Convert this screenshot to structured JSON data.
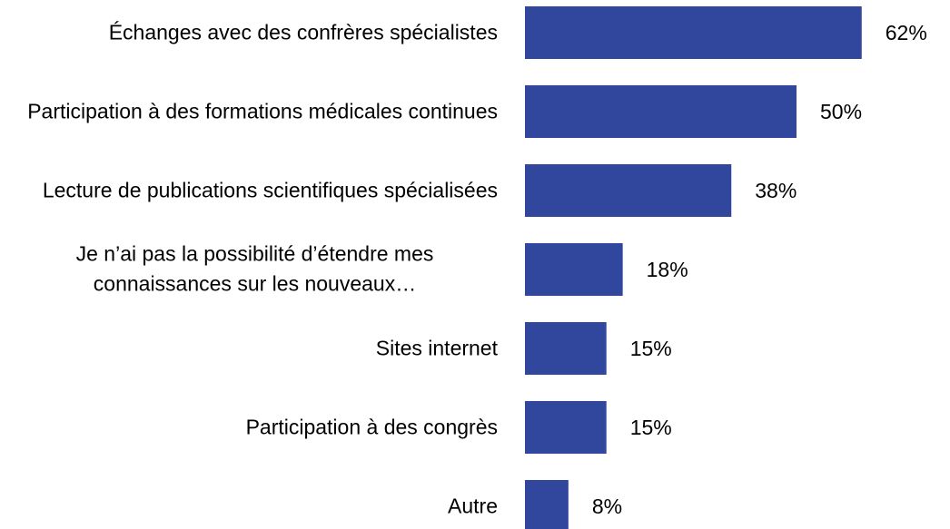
{
  "chart_data": {
    "type": "bar",
    "orientation": "horizontal",
    "categories": [
      "Échanges avec des confrères spécialistes",
      "Participation à des formations médicales continues",
      "Lecture de publications scientifiques spécialisées",
      "Je n’ai pas la possibilité d’étendre mes connaissances sur les nouveaux…",
      "Sites internet",
      "Participation à des congrès",
      "Autre"
    ],
    "values": [
      62,
      50,
      38,
      18,
      15,
      15,
      8
    ],
    "value_labels": [
      "62%",
      "50%",
      "38%",
      "18%",
      "15%",
      "15%",
      "8%"
    ],
    "color": "#31479e"
  }
}
